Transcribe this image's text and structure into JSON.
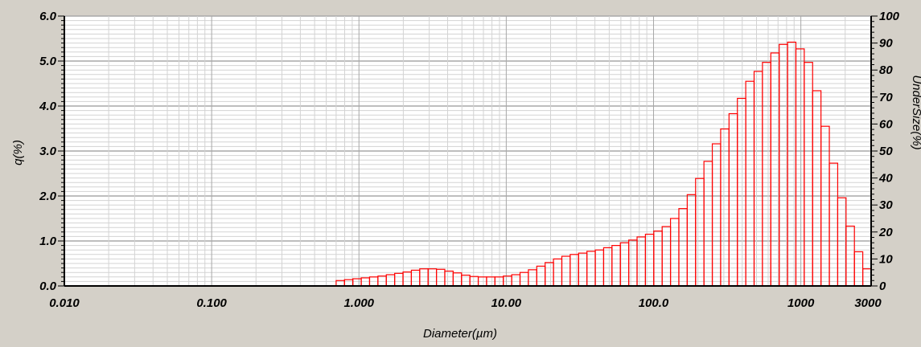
{
  "chart_data": {
    "type": "bar",
    "title": "",
    "xlabel": "Diameter(µm)",
    "ylabel_left": "q(%)",
    "ylabel_right": "UnderSize(%)",
    "x_scale": "log",
    "xlim": [
      0.01,
      3000
    ],
    "ylim_left": [
      0,
      6
    ],
    "ylim_right": [
      0,
      100
    ],
    "grid": true,
    "legend": "none",
    "x_tick_labels": [
      "0.010",
      "0.100",
      "1.000",
      "10.00",
      "100.0",
      "1000",
      "3000"
    ],
    "x_tick_values": [
      0.01,
      0.1,
      1,
      10,
      100,
      1000,
      3000
    ],
    "y_left_tick_labels": [
      "0.0",
      "1.0",
      "2.0",
      "3.0",
      "4.0",
      "5.0",
      "6.0"
    ],
    "y_right_tick_labels": [
      "0",
      "10",
      "20",
      "30",
      "40",
      "50",
      "60",
      "70",
      "80",
      "90",
      "100"
    ],
    "bar_color": "#ff0000",
    "bins_x_start": 0.7,
    "bins_x_end": 3000,
    "values": [
      0.12,
      0.14,
      0.16,
      0.18,
      0.2,
      0.22,
      0.25,
      0.28,
      0.31,
      0.35,
      0.38,
      0.38,
      0.37,
      0.33,
      0.29,
      0.24,
      0.21,
      0.2,
      0.2,
      0.2,
      0.22,
      0.25,
      0.3,
      0.36,
      0.44,
      0.52,
      0.6,
      0.66,
      0.7,
      0.73,
      0.77,
      0.8,
      0.85,
      0.9,
      0.96,
      1.02,
      1.09,
      1.15,
      1.22,
      1.32,
      1.5,
      1.72,
      2.03,
      2.39,
      2.77,
      3.16,
      3.49,
      3.83,
      4.17,
      4.55,
      4.77,
      4.97,
      5.18,
      5.37,
      5.42,
      5.27,
      4.97,
      4.34,
      3.55,
      2.73,
      1.96,
      1.33,
      0.76,
      0.38
    ]
  }
}
